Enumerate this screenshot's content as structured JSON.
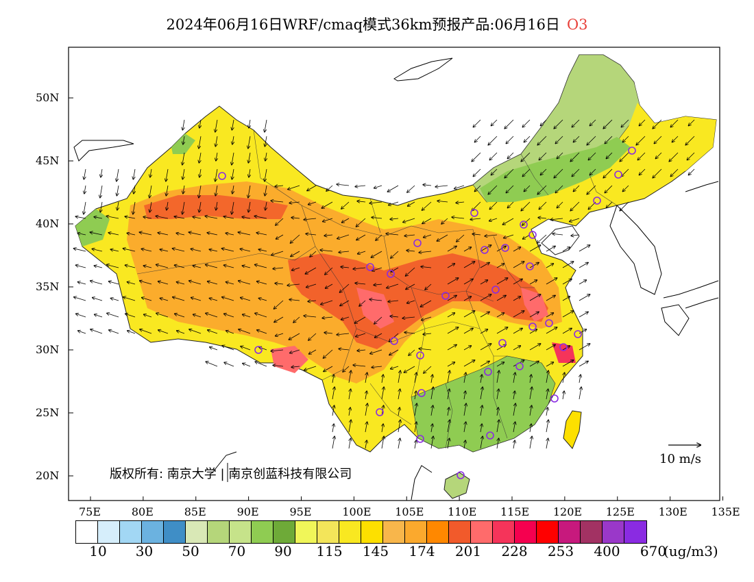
{
  "title": {
    "main": "2024年06月16日WRF/cmaq模式36km预报产品:06月16日",
    "pollutant": "O3"
  },
  "axes": {
    "lat_labels": [
      "50N",
      "45N",
      "40N",
      "35N",
      "30N",
      "25N",
      "20N"
    ],
    "lon_labels": [
      "75E",
      "80E",
      "85E",
      "90E",
      "95E",
      "100E",
      "105E",
      "110E",
      "115E",
      "120E",
      "125E",
      "130E",
      "135E"
    ]
  },
  "copyright": "版权所有: 南京大学 | 南京创蓝科技有限公司",
  "wind_reference": "10 m/s",
  "legend": {
    "unit": "(ug/m3)",
    "tick_labels": [
      "10",
      "30",
      "50",
      "70",
      "90",
      "115",
      "145",
      "174",
      "201",
      "228",
      "253",
      "400",
      "670"
    ],
    "colors": [
      "#ffffff",
      "#d6eefb",
      "#a2d7f4",
      "#6bb2e0",
      "#3f8ec6",
      "#d9e8b6",
      "#b5d67a",
      "#c6e38a",
      "#8fcc52",
      "#6eaa38",
      "#f0f659",
      "#f3e55a",
      "#f9e821",
      "#fde000",
      "#f8b64b",
      "#fba92d",
      "#ff8800",
      "#f15a2b",
      "#ff6b6b",
      "#f5345a",
      "#f5004f",
      "#ff0000",
      "#c7197d",
      "#a23263",
      "#9a38c9",
      "#8a2be2"
    ]
  },
  "colors": {
    "pollutant_label": "#e8413a",
    "city_marker": "#8a2be2",
    "ocean": "#ffffff"
  }
}
